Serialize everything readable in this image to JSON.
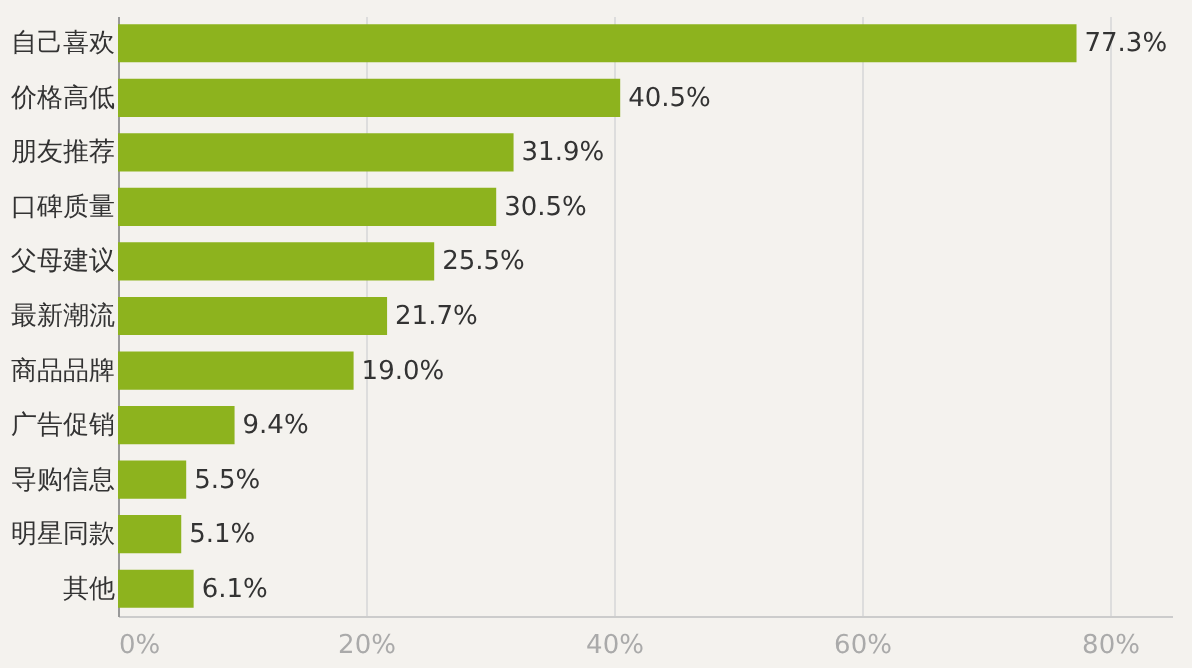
{
  "chart_data": {
    "type": "bar",
    "orientation": "horizontal",
    "categories": [
      "自己喜欢",
      "价格高低",
      "朋友推荐",
      "口碑质量",
      "父母建议",
      "最新潮流",
      "商品品牌",
      "广告促销",
      "导购信息",
      "明星同款",
      "其他"
    ],
    "values": [
      77.3,
      40.5,
      31.9,
      30.5,
      25.5,
      21.7,
      19.0,
      9.4,
      5.5,
      5.1,
      6.1
    ],
    "value_labels": [
      "77.3%",
      "40.5%",
      "31.9%",
      "30.5%",
      "25.5%",
      "21.7%",
      "19.0%",
      "9.4%",
      "5.5%",
      "5.1%",
      "6.1%"
    ],
    "color": "#8db31e",
    "xlim": [
      0,
      85
    ],
    "xticks": [
      {
        "value": 0,
        "label": "0%"
      },
      {
        "value": 20,
        "label": "20%"
      },
      {
        "value": 40,
        "label": "40%"
      },
      {
        "value": 60,
        "label": "60%"
      },
      {
        "value": 80,
        "label": "80%"
      }
    ],
    "grid": "x"
  }
}
